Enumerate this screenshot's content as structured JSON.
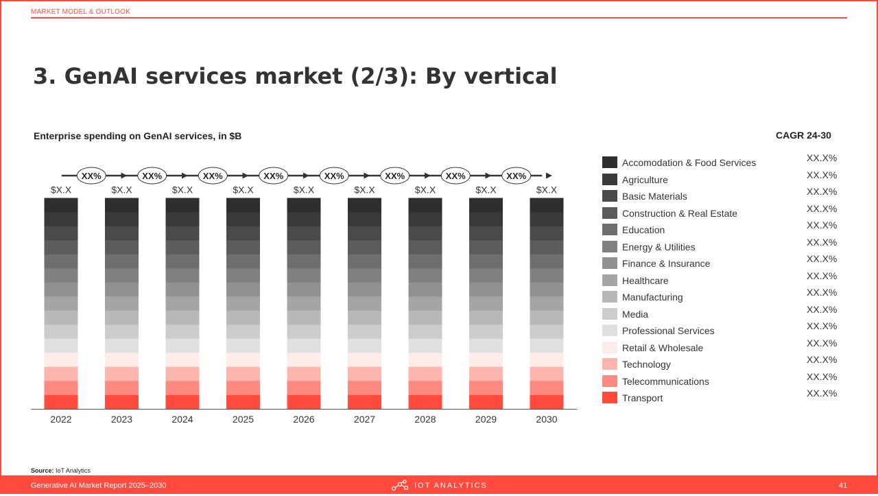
{
  "header": {
    "section_label": "MARKET MODEL & OUTLOOK",
    "title": "3. GenAI services market (2/3): By vertical"
  },
  "chart_data": {
    "type": "bar",
    "stacked": true,
    "title": "Enterprise spending on GenAI services, in $B",
    "categories": [
      "2022",
      "2023",
      "2024",
      "2025",
      "2026",
      "2027",
      "2028",
      "2029",
      "2030"
    ],
    "total_labels": [
      "$X.X",
      "$X.X",
      "$X.X",
      "$X.X",
      "$X.X",
      "$X.X",
      "$X.X",
      "$X.X",
      "$X.X"
    ],
    "growth_labels": [
      "XX%",
      "XX%",
      "XX%",
      "XX%",
      "XX%",
      "XX%",
      "XX%",
      "XX%"
    ],
    "series": [
      {
        "name": "Accomodation & Food Services",
        "color": "#2e2e2e",
        "values": [
          1,
          1,
          1,
          1,
          1,
          1,
          1,
          1,
          1
        ]
      },
      {
        "name": "Agriculture",
        "color": "#393939",
        "values": [
          1,
          1,
          1,
          1,
          1,
          1,
          1,
          1,
          1
        ]
      },
      {
        "name": "Basic Materials",
        "color": "#4a4a4a",
        "values": [
          1,
          1,
          1,
          1,
          1,
          1,
          1,
          1,
          1
        ]
      },
      {
        "name": "Construction & Real Estate",
        "color": "#5c5c5c",
        "values": [
          1,
          1,
          1,
          1,
          1,
          1,
          1,
          1,
          1
        ]
      },
      {
        "name": "Education",
        "color": "#6e6e6e",
        "values": [
          1,
          1,
          1,
          1,
          1,
          1,
          1,
          1,
          1
        ]
      },
      {
        "name": "Energy & Utilities",
        "color": "#808080",
        "values": [
          1,
          1,
          1,
          1,
          1,
          1,
          1,
          1,
          1
        ]
      },
      {
        "name": "Finance & Insurance",
        "color": "#919191",
        "values": [
          1,
          1,
          1,
          1,
          1,
          1,
          1,
          1,
          1
        ]
      },
      {
        "name": "Healthcare",
        "color": "#a5a5a5",
        "values": [
          1,
          1,
          1,
          1,
          1,
          1,
          1,
          1,
          1
        ]
      },
      {
        "name": "Manufacturing",
        "color": "#b8b8b8",
        "values": [
          1,
          1,
          1,
          1,
          1,
          1,
          1,
          1,
          1
        ]
      },
      {
        "name": "Media",
        "color": "#cccccc",
        "values": [
          1,
          1,
          1,
          1,
          1,
          1,
          1,
          1,
          1
        ]
      },
      {
        "name": "Professional Services",
        "color": "#e0e0e0",
        "values": [
          1,
          1,
          1,
          1,
          1,
          1,
          1,
          1,
          1
        ]
      },
      {
        "name": "Retail & Wholesale",
        "color": "#feece9",
        "values": [
          1,
          1,
          1,
          1,
          1,
          1,
          1,
          1,
          1
        ]
      },
      {
        "name": "Technology",
        "color": "#fdb6ae",
        "values": [
          1,
          1,
          1,
          1,
          1,
          1,
          1,
          1,
          1
        ]
      },
      {
        "name": "Telecommunications",
        "color": "#fd8a80",
        "values": [
          1,
          1,
          1,
          1,
          1,
          1,
          1,
          1,
          1
        ]
      },
      {
        "name": "Transport",
        "color": "#ff4a3d",
        "values": [
          1,
          1,
          1,
          1,
          1,
          1,
          1,
          1,
          1
        ]
      }
    ]
  },
  "cagr": {
    "title": "CAGR 24-30",
    "values": [
      "XX.X%",
      "XX.X%",
      "XX.X%",
      "XX.X%",
      "XX.X%",
      "XX.X%",
      "XX.X%",
      "XX.X%",
      "XX.X%",
      "XX.X%",
      "XX.X%",
      "XX.X%",
      "XX.X%",
      "XX.X%",
      "XX.X%"
    ]
  },
  "footer": {
    "source_label": "Source:",
    "source_value": "IoT Analytics",
    "report_name": "Generative AI Market Report 2025–2030",
    "brand": "IOT ANALYTICS",
    "page_number": "41"
  },
  "colors": {
    "accent": "#ff4a3d",
    "text": "#333333"
  }
}
